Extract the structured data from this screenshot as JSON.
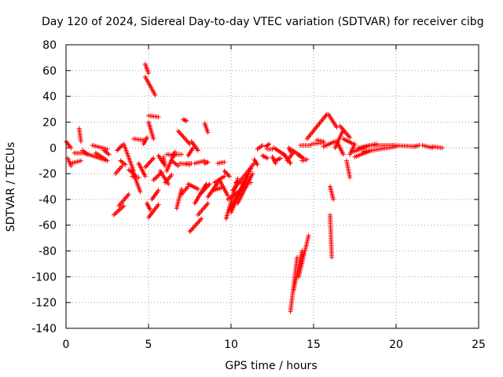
{
  "chart_data": {
    "type": "scatter",
    "title": "Day 120 of 2024, Sidereal Day-to-day VTEC variation (SDTVAR) for receiver cibg",
    "xlabel": "GPS time / hours",
    "ylabel": "SDTVAR / TECUs",
    "xlim": [
      0,
      25
    ],
    "ylim": [
      -140,
      80
    ],
    "xticks": [
      0,
      5,
      10,
      15,
      20,
      25
    ],
    "yticks": [
      -140,
      -120,
      -100,
      -80,
      -60,
      -40,
      -20,
      0,
      20,
      40,
      60,
      80
    ],
    "grid": true,
    "marker": "+",
    "color": "#ff0000",
    "segments": [
      [
        [
          0.0,
          5
        ],
        [
          0.3,
          0
        ]
      ],
      [
        [
          0.1,
          -8
        ],
        [
          0.3,
          -14
        ]
      ],
      [
        [
          0.3,
          -12
        ],
        [
          0.9,
          -10
        ]
      ],
      [
        [
          0.5,
          -4
        ],
        [
          1.0,
          -4
        ]
      ],
      [
        [
          0.8,
          15
        ],
        [
          0.9,
          5
        ]
      ],
      [
        [
          1.0,
          -2
        ],
        [
          1.3,
          -5
        ]
      ],
      [
        [
          1.1,
          -4
        ],
        [
          2.5,
          -10
        ]
      ],
      [
        [
          1.6,
          2
        ],
        [
          2.5,
          -1
        ]
      ],
      [
        [
          1.8,
          -4
        ],
        [
          2.4,
          -9
        ]
      ],
      [
        [
          2.3,
          -2
        ],
        [
          2.6,
          -5
        ]
      ],
      [
        [
          2.9,
          -52
        ],
        [
          3.5,
          -45
        ]
      ],
      [
        [
          3.2,
          -45
        ],
        [
          3.8,
          -36
        ]
      ],
      [
        [
          3.0,
          -20
        ],
        [
          3.4,
          -14
        ]
      ],
      [
        [
          3.1,
          -2
        ],
        [
          3.4,
          2
        ]
      ],
      [
        [
          3.3,
          -10
        ],
        [
          3.6,
          -13
        ]
      ],
      [
        [
          3.5,
          3
        ],
        [
          4.1,
          -18
        ]
      ],
      [
        [
          3.8,
          -17
        ],
        [
          4.2,
          -21
        ]
      ],
      [
        [
          4.0,
          -22
        ],
        [
          4.4,
          -23
        ]
      ],
      [
        [
          4.0,
          -17
        ],
        [
          4.5,
          -34
        ]
      ],
      [
        [
          4.1,
          7
        ],
        [
          4.7,
          6
        ]
      ],
      [
        [
          4.4,
          -12
        ],
        [
          4.8,
          -22
        ]
      ],
      [
        [
          4.7,
          3
        ],
        [
          4.9,
          8
        ]
      ],
      [
        [
          4.8,
          65
        ],
        [
          5.0,
          58
        ]
      ],
      [
        [
          4.8,
          55
        ],
        [
          5.4,
          41
        ]
      ],
      [
        [
          5.0,
          20
        ],
        [
          5.3,
          7
        ]
      ],
      [
        [
          4.9,
          -43
        ],
        [
          5.1,
          -48
        ]
      ],
      [
        [
          5.0,
          -54
        ],
        [
          5.6,
          -44
        ]
      ],
      [
        [
          4.8,
          -15
        ],
        [
          5.3,
          -8
        ]
      ],
      [
        [
          5.2,
          -40
        ],
        [
          5.6,
          -33
        ]
      ],
      [
        [
          5.3,
          -25
        ],
        [
          5.8,
          -19
        ]
      ],
      [
        [
          5.0,
          25
        ],
        [
          5.6,
          24
        ]
      ],
      [
        [
          5.6,
          -6
        ],
        [
          5.9,
          -12
        ]
      ],
      [
        [
          5.7,
          -18
        ],
        [
          6.2,
          -28
        ]
      ],
      [
        [
          5.9,
          -7
        ],
        [
          6.0,
          -14
        ]
      ],
      [
        [
          6.0,
          -27
        ],
        [
          6.4,
          -21
        ]
      ],
      [
        [
          6.1,
          -18
        ],
        [
          6.6,
          -3
        ]
      ],
      [
        [
          6.1,
          -5
        ],
        [
          6.6,
          -6
        ]
      ],
      [
        [
          6.4,
          -10
        ],
        [
          6.8,
          -14
        ]
      ],
      [
        [
          6.5,
          -5
        ],
        [
          7.0,
          -5
        ]
      ],
      [
        [
          6.7,
          -47
        ],
        [
          7.0,
          -32
        ]
      ],
      [
        [
          6.8,
          13
        ],
        [
          7.5,
          3
        ]
      ],
      [
        [
          6.9,
          -12
        ],
        [
          7.5,
          -13
        ]
      ],
      [
        [
          7.0,
          -36
        ],
        [
          7.4,
          -30
        ]
      ],
      [
        [
          7.1,
          22
        ],
        [
          7.3,
          21
        ]
      ],
      [
        [
          7.3,
          -12
        ],
        [
          7.6,
          -12
        ]
      ],
      [
        [
          7.4,
          -6
        ],
        [
          7.7,
          0
        ]
      ],
      [
        [
          7.4,
          -28
        ],
        [
          8.0,
          -32
        ]
      ],
      [
        [
          7.5,
          -65
        ],
        [
          8.2,
          -55
        ]
      ],
      [
        [
          7.6,
          5
        ],
        [
          8.0,
          -2
        ]
      ],
      [
        [
          7.8,
          -43
        ],
        [
          8.5,
          -28
        ]
      ],
      [
        [
          7.8,
          -12
        ],
        [
          8.4,
          -10
        ]
      ],
      [
        [
          8.0,
          -52
        ],
        [
          8.6,
          -43
        ]
      ],
      [
        [
          8.2,
          -35
        ],
        [
          8.7,
          -28
        ]
      ],
      [
        [
          8.4,
          19
        ],
        [
          8.6,
          12
        ]
      ],
      [
        [
          8.4,
          -12
        ],
        [
          8.6,
          -11
        ]
      ],
      [
        [
          8.6,
          -38
        ],
        [
          9.2,
          -27
        ]
      ],
      [
        [
          8.9,
          -33
        ],
        [
          9.4,
          -31
        ]
      ],
      [
        [
          9.0,
          -27
        ],
        [
          9.6,
          -22
        ]
      ],
      [
        [
          9.2,
          -12
        ],
        [
          9.6,
          -11
        ]
      ],
      [
        [
          9.3,
          -25
        ],
        [
          9.8,
          -37
        ]
      ],
      [
        [
          9.6,
          -18
        ],
        [
          9.9,
          -22
        ]
      ],
      [
        [
          9.7,
          -55
        ],
        [
          10.4,
          -24
        ]
      ],
      [
        [
          9.8,
          -40
        ],
        [
          10.9,
          -30
        ]
      ],
      [
        [
          9.9,
          -48
        ],
        [
          11.0,
          -22
        ]
      ],
      [
        [
          10.0,
          -50
        ],
        [
          11.2,
          -16
        ]
      ],
      [
        [
          10.1,
          -33
        ],
        [
          11.4,
          -12
        ]
      ],
      [
        [
          10.3,
          -27
        ],
        [
          11.2,
          -27
        ]
      ],
      [
        [
          10.4,
          -43
        ],
        [
          11.3,
          -20
        ]
      ],
      [
        [
          11.4,
          -9
        ],
        [
          11.6,
          -13
        ]
      ],
      [
        [
          11.6,
          -1
        ],
        [
          11.9,
          2
        ]
      ],
      [
        [
          11.9,
          -6
        ],
        [
          12.2,
          -8
        ]
      ],
      [
        [
          12.1,
          1
        ],
        [
          12.3,
          3
        ]
      ],
      [
        [
          12.2,
          -1
        ],
        [
          12.5,
          -1
        ]
      ],
      [
        [
          12.5,
          -7
        ],
        [
          12.7,
          -12
        ]
      ],
      [
        [
          12.7,
          -10
        ],
        [
          13.0,
          -8
        ]
      ],
      [
        [
          12.6,
          0
        ],
        [
          13.3,
          -6
        ]
      ],
      [
        [
          13.2,
          -5
        ],
        [
          13.6,
          -12
        ]
      ],
      [
        [
          13.4,
          -10
        ],
        [
          13.8,
          -3
        ]
      ],
      [
        [
          13.5,
          0
        ],
        [
          13.6,
          -3
        ]
      ],
      [
        [
          13.6,
          -1
        ],
        [
          14.2,
          -6
        ]
      ],
      [
        [
          14.1,
          -6
        ],
        [
          14.4,
          -8
        ]
      ],
      [
        [
          13.6,
          -127
        ],
        [
          14.0,
          -85
        ]
      ],
      [
        [
          13.8,
          -110
        ],
        [
          14.3,
          -80
        ]
      ],
      [
        [
          14.1,
          -100
        ],
        [
          14.7,
          -68
        ]
      ],
      [
        [
          14.3,
          -10
        ],
        [
          14.6,
          -9
        ]
      ],
      [
        [
          14.2,
          2
        ],
        [
          14.8,
          2
        ]
      ],
      [
        [
          14.6,
          7
        ],
        [
          15.8,
          26
        ]
      ],
      [
        [
          14.9,
          3
        ],
        [
          15.6,
          4
        ]
      ],
      [
        [
          15.2,
          6
        ],
        [
          15.6,
          5
        ]
      ],
      [
        [
          15.6,
          1
        ],
        [
          16.3,
          5
        ]
      ],
      [
        [
          15.9,
          26
        ],
        [
          16.4,
          16
        ]
      ],
      [
        [
          16.0,
          -30
        ],
        [
          16.2,
          -40
        ]
      ],
      [
        [
          16.0,
          -52
        ],
        [
          16.1,
          -85
        ]
      ],
      [
        [
          16.3,
          0
        ],
        [
          16.8,
          14
        ]
      ],
      [
        [
          16.4,
          5
        ],
        [
          16.8,
          -5
        ]
      ],
      [
        [
          16.6,
          17
        ],
        [
          17.2,
          8
        ]
      ],
      [
        [
          16.8,
          7
        ],
        [
          17.4,
          3
        ]
      ],
      [
        [
          17.0,
          -10
        ],
        [
          17.2,
          -23
        ]
      ],
      [
        [
          17.2,
          -5
        ],
        [
          17.5,
          3
        ]
      ],
      [
        [
          17.4,
          -3
        ],
        [
          18.4,
          2
        ]
      ],
      [
        [
          17.5,
          -7
        ],
        [
          18.5,
          -2
        ]
      ],
      [
        [
          17.7,
          0
        ],
        [
          18.8,
          3
        ]
      ],
      [
        [
          18.0,
          -3
        ],
        [
          20.0,
          1
        ]
      ],
      [
        [
          18.5,
          2
        ],
        [
          19.8,
          2
        ]
      ],
      [
        [
          19.8,
          2
        ],
        [
          21.2,
          1
        ]
      ],
      [
        [
          21.0,
          1
        ],
        [
          21.4,
          2
        ]
      ],
      [
        [
          21.6,
          2
        ],
        [
          22.2,
          0
        ]
      ],
      [
        [
          22.2,
          1
        ],
        [
          22.8,
          0
        ]
      ]
    ]
  }
}
